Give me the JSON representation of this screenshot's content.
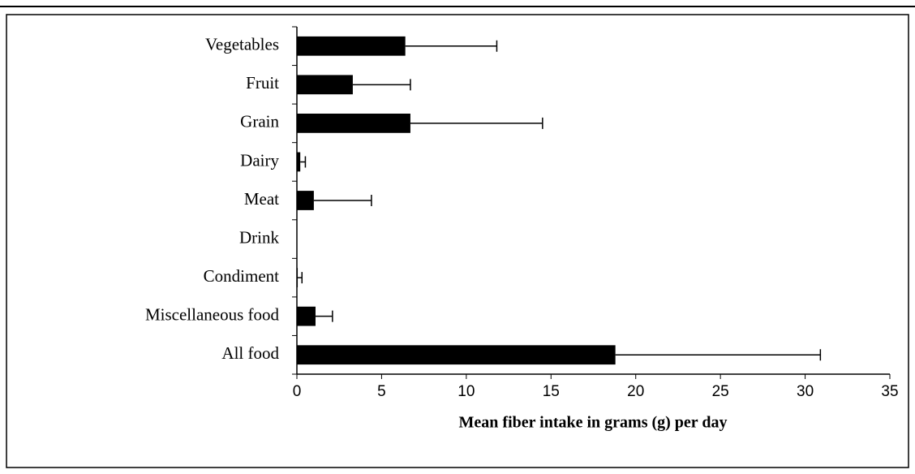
{
  "chart_data": {
    "type": "bar",
    "orientation": "horizontal",
    "xlabel": "Mean fiber intake in grams (g) per day",
    "categories": [
      "Vegetables",
      "Fruit",
      "Grain",
      "Dairy",
      "Meat",
      "Drink",
      "Condiment",
      "Miscellaneous food",
      "All food"
    ],
    "values": [
      6.4,
      3.3,
      6.7,
      0.2,
      1.0,
      0,
      0.05,
      1.1,
      18.8
    ],
    "errors": [
      5.4,
      3.4,
      7.8,
      0.3,
      3.4,
      0,
      0.25,
      1.0,
      12.1
    ],
    "color": "#000000",
    "xlim": [
      0,
      35
    ],
    "xticks": [
      0,
      5,
      10,
      15,
      20,
      25,
      30,
      35
    ],
    "grid": false
  }
}
